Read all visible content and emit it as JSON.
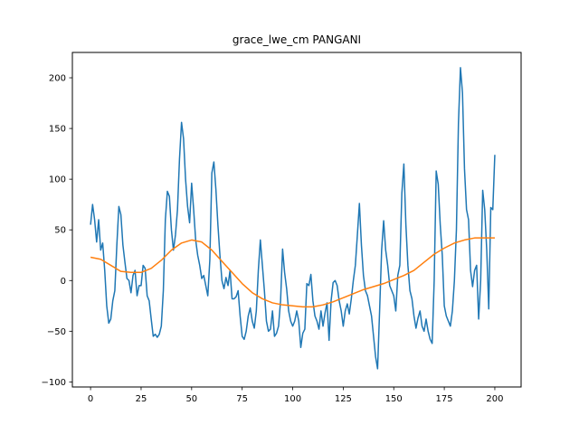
{
  "chart_data": {
    "type": "line",
    "title": "grace_lwe_cm PANGANI",
    "xlabel": "",
    "ylabel": "",
    "xlim": [
      -9,
      213
    ],
    "ylim": [
      -105,
      225
    ],
    "x_ticks": [
      0,
      25,
      50,
      75,
      100,
      125,
      150,
      175,
      200
    ],
    "y_ticks": [
      -100,
      -50,
      0,
      50,
      100,
      150,
      200
    ],
    "grid": false,
    "colors": {
      "raw": "#1f77b4",
      "smooth": "#ff7f0e"
    },
    "series": [
      {
        "values": [
          [
            0,
            55
          ],
          [
            1,
            75
          ],
          [
            2,
            60
          ],
          [
            3,
            38
          ],
          [
            4,
            60
          ],
          [
            5,
            30
          ],
          [
            6,
            37
          ],
          [
            7,
            10
          ],
          [
            8,
            -25
          ],
          [
            9,
            -42
          ],
          [
            10,
            -38
          ],
          [
            11,
            -20
          ],
          [
            12,
            -10
          ],
          [
            13,
            35
          ],
          [
            14,
            73
          ],
          [
            15,
            65
          ],
          [
            16,
            35
          ],
          [
            17,
            18
          ],
          [
            18,
            2
          ],
          [
            19,
            0
          ],
          [
            20,
            -12
          ],
          [
            21,
            5
          ],
          [
            22,
            10
          ],
          [
            23,
            -15
          ],
          [
            24,
            -5
          ],
          [
            25,
            -5
          ],
          [
            26,
            15
          ],
          [
            27,
            12
          ],
          [
            28,
            -15
          ],
          [
            29,
            -20
          ],
          [
            30,
            -38
          ],
          [
            31,
            -55
          ],
          [
            32,
            -53
          ],
          [
            33,
            -56
          ],
          [
            34,
            -53
          ],
          [
            35,
            -45
          ],
          [
            36,
            -10
          ],
          [
            37,
            60
          ],
          [
            38,
            88
          ],
          [
            39,
            83
          ],
          [
            40,
            50
          ],
          [
            41,
            30
          ],
          [
            42,
            45
          ],
          [
            43,
            70
          ],
          [
            44,
            120
          ],
          [
            45,
            156
          ],
          [
            46,
            140
          ],
          [
            47,
            100
          ],
          [
            48,
            73
          ],
          [
            49,
            57
          ],
          [
            50,
            96
          ],
          [
            51,
            70
          ],
          [
            52,
            40
          ],
          [
            53,
            25
          ],
          [
            54,
            15
          ],
          [
            55,
            2
          ],
          [
            56,
            5
          ],
          [
            57,
            -5
          ],
          [
            58,
            -15
          ],
          [
            59,
            20
          ],
          [
            60,
            106
          ],
          [
            61,
            117
          ],
          [
            62,
            90
          ],
          [
            63,
            55
          ],
          [
            64,
            25
          ],
          [
            65,
            0
          ],
          [
            66,
            -8
          ],
          [
            67,
            3
          ],
          [
            68,
            -5
          ],
          [
            69,
            10
          ],
          [
            70,
            -18
          ],
          [
            71,
            -18
          ],
          [
            72,
            -16
          ],
          [
            73,
            -10
          ],
          [
            74,
            -35
          ],
          [
            75,
            -55
          ],
          [
            76,
            -58
          ],
          [
            77,
            -50
          ],
          [
            78,
            -35
          ],
          [
            79,
            -27
          ],
          [
            80,
            -40
          ],
          [
            81,
            -47
          ],
          [
            82,
            -30
          ],
          [
            83,
            10
          ],
          [
            84,
            40
          ],
          [
            85,
            15
          ],
          [
            86,
            -10
          ],
          [
            87,
            -40
          ],
          [
            88,
            -50
          ],
          [
            89,
            -48
          ],
          [
            90,
            -30
          ],
          [
            91,
            -55
          ],
          [
            92,
            -52
          ],
          [
            93,
            -45
          ],
          [
            94,
            -20
          ],
          [
            95,
            31
          ],
          [
            96,
            8
          ],
          [
            97,
            -8
          ],
          [
            98,
            -30
          ],
          [
            99,
            -40
          ],
          [
            100,
            -45
          ],
          [
            101,
            -40
          ],
          [
            102,
            -30
          ],
          [
            103,
            -40
          ],
          [
            104,
            -66
          ],
          [
            105,
            -52
          ],
          [
            106,
            -48
          ],
          [
            107,
            -3
          ],
          [
            108,
            -5
          ],
          [
            109,
            6
          ],
          [
            110,
            -20
          ],
          [
            111,
            -35
          ],
          [
            112,
            -40
          ],
          [
            113,
            -48
          ],
          [
            114,
            -30
          ],
          [
            115,
            -45
          ],
          [
            116,
            -32
          ],
          [
            117,
            -22
          ],
          [
            118,
            -59
          ],
          [
            119,
            -20
          ],
          [
            120,
            -2
          ],
          [
            121,
            0
          ],
          [
            122,
            -5
          ],
          [
            123,
            -20
          ],
          [
            124,
            -30
          ],
          [
            125,
            -45
          ],
          [
            126,
            -30
          ],
          [
            127,
            -23
          ],
          [
            128,
            -33
          ],
          [
            129,
            -18
          ],
          [
            130,
            0
          ],
          [
            131,
            15
          ],
          [
            132,
            45
          ],
          [
            133,
            76
          ],
          [
            134,
            35
          ],
          [
            135,
            5
          ],
          [
            136,
            -10
          ],
          [
            137,
            -15
          ],
          [
            138,
            -25
          ],
          [
            139,
            -35
          ],
          [
            140,
            -55
          ],
          [
            141,
            -75
          ],
          [
            142,
            -87
          ],
          [
            143,
            -30
          ],
          [
            144,
            30
          ],
          [
            145,
            59
          ],
          [
            146,
            30
          ],
          [
            147,
            15
          ],
          [
            148,
            -5
          ],
          [
            149,
            -10
          ],
          [
            150,
            -15
          ],
          [
            151,
            -30
          ],
          [
            152,
            5
          ],
          [
            153,
            15
          ],
          [
            154,
            86
          ],
          [
            155,
            115
          ],
          [
            156,
            55
          ],
          [
            157,
            15
          ],
          [
            158,
            -10
          ],
          [
            159,
            -18
          ],
          [
            160,
            -35
          ],
          [
            161,
            -47
          ],
          [
            162,
            -37
          ],
          [
            163,
            -30
          ],
          [
            164,
            -45
          ],
          [
            165,
            -50
          ],
          [
            166,
            -38
          ],
          [
            167,
            -50
          ],
          [
            168,
            -58
          ],
          [
            169,
            -62
          ],
          [
            170,
            0
          ],
          [
            171,
            108
          ],
          [
            172,
            95
          ],
          [
            173,
            55
          ],
          [
            174,
            25
          ],
          [
            175,
            -25
          ],
          [
            176,
            -35
          ],
          [
            177,
            -40
          ],
          [
            178,
            -45
          ],
          [
            179,
            -30
          ],
          [
            180,
            0
          ],
          [
            181,
            50
          ],
          [
            182,
            155
          ],
          [
            183,
            210
          ],
          [
            184,
            185
          ],
          [
            185,
            110
          ],
          [
            186,
            70
          ],
          [
            187,
            60
          ],
          [
            188,
            10
          ],
          [
            189,
            -6
          ],
          [
            190,
            10
          ],
          [
            191,
            15
          ],
          [
            192,
            -38
          ],
          [
            193,
            0
          ],
          [
            194,
            89
          ],
          [
            195,
            70
          ],
          [
            196,
            30
          ],
          [
            197,
            -28
          ],
          [
            198,
            72
          ],
          [
            199,
            70
          ],
          [
            200,
            124
          ]
        ]
      },
      {
        "values": [
          [
            0,
            23
          ],
          [
            5,
            21
          ],
          [
            10,
            15
          ],
          [
            15,
            9
          ],
          [
            20,
            8
          ],
          [
            25,
            8
          ],
          [
            30,
            12
          ],
          [
            35,
            20
          ],
          [
            40,
            30
          ],
          [
            45,
            37
          ],
          [
            50,
            40
          ],
          [
            55,
            38
          ],
          [
            60,
            30
          ],
          [
            65,
            19
          ],
          [
            70,
            8
          ],
          [
            75,
            -3
          ],
          [
            80,
            -12
          ],
          [
            85,
            -18
          ],
          [
            90,
            -22
          ],
          [
            95,
            -24
          ],
          [
            100,
            -25
          ],
          [
            105,
            -26
          ],
          [
            110,
            -26
          ],
          [
            115,
            -24
          ],
          [
            120,
            -21
          ],
          [
            125,
            -17
          ],
          [
            130,
            -13
          ],
          [
            135,
            -9
          ],
          [
            140,
            -6
          ],
          [
            145,
            -3
          ],
          [
            150,
            1
          ],
          [
            155,
            5
          ],
          [
            160,
            10
          ],
          [
            165,
            18
          ],
          [
            170,
            26
          ],
          [
            175,
            32
          ],
          [
            180,
            37
          ],
          [
            185,
            40
          ],
          [
            190,
            42
          ],
          [
            195,
            42
          ],
          [
            200,
            42
          ]
        ]
      }
    ]
  }
}
